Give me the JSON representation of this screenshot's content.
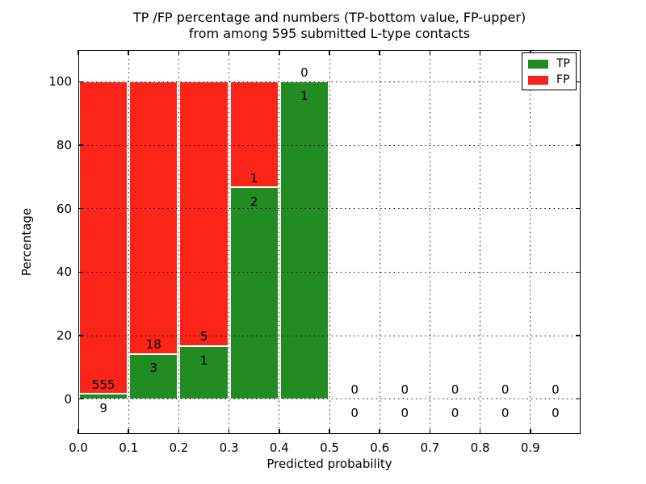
{
  "header": {
    "title_line1": "TP /FP percentage and numbers (TP-bottom value, FP-upper)",
    "title_line2": "from among 595 submitted L-type contacts"
  },
  "chart_data": {
    "type": "bar",
    "stacked": true,
    "normalized": "each bin scaled to 100%",
    "title": "TP /FP percentage and numbers (TP-bottom value, FP-upper) from among 595 submitted L-type contacts",
    "xlabel": "Predicted probability",
    "ylabel": "Percentage",
    "total_submitted": 595,
    "xlim": [
      0.0,
      1.0
    ],
    "ylim": [
      -11,
      110
    ],
    "grid": true,
    "grid_style": "dotted",
    "legend_position": "upper right",
    "x_ticks": [
      {
        "v": 0.0,
        "label": "0.0"
      },
      {
        "v": 0.1,
        "label": "0.1"
      },
      {
        "v": 0.2,
        "label": "0.2"
      },
      {
        "v": 0.3,
        "label": "0.3"
      },
      {
        "v": 0.4,
        "label": "0.4"
      },
      {
        "v": 0.5,
        "label": "0.5"
      },
      {
        "v": 0.6,
        "label": "0.6"
      },
      {
        "v": 0.7,
        "label": "0.7"
      },
      {
        "v": 0.8,
        "label": "0.8"
      },
      {
        "v": 0.9,
        "label": "0.9"
      }
    ],
    "y_ticks": [
      {
        "v": 0,
        "label": "0"
      },
      {
        "v": 20,
        "label": "20"
      },
      {
        "v": 40,
        "label": "40"
      },
      {
        "v": 60,
        "label": "60"
      },
      {
        "v": 80,
        "label": "80"
      },
      {
        "v": 100,
        "label": "100"
      }
    ],
    "series": [
      {
        "name": "TP",
        "color": "#228b22",
        "position": "bottom"
      },
      {
        "name": "FP",
        "color": "#fa2518",
        "position": "top"
      }
    ],
    "bins": [
      {
        "x0": 0.0,
        "x1": 0.1,
        "tp": 9,
        "fp": 555
      },
      {
        "x0": 0.1,
        "x1": 0.2,
        "tp": 3,
        "fp": 18
      },
      {
        "x0": 0.2,
        "x1": 0.3,
        "tp": 1,
        "fp": 5
      },
      {
        "x0": 0.3,
        "x1": 0.4,
        "tp": 2,
        "fp": 1
      },
      {
        "x0": 0.4,
        "x1": 0.5,
        "tp": 1,
        "fp": 0
      },
      {
        "x0": 0.5,
        "x1": 0.6,
        "tp": 0,
        "fp": 0
      },
      {
        "x0": 0.6,
        "x1": 0.7,
        "tp": 0,
        "fp": 0
      },
      {
        "x0": 0.7,
        "x1": 0.8,
        "tp": 0,
        "fp": 0
      },
      {
        "x0": 0.8,
        "x1": 0.9,
        "tp": 0,
        "fp": 0
      },
      {
        "x0": 0.9,
        "x1": 1.0,
        "tp": 0,
        "fp": 0
      }
    ]
  }
}
